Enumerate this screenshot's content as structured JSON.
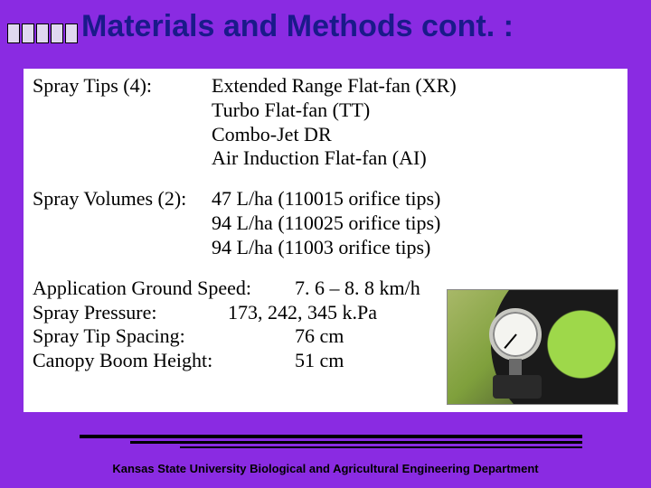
{
  "title": "Materials and Methods cont. :",
  "sections": {
    "sprayTips": {
      "label": "Spray Tips (4):",
      "lines": [
        "Extended Range Flat-fan (XR)",
        "Turbo Flat-fan (TT)",
        "Combo-Jet DR",
        "Air Induction Flat-fan (AI)"
      ]
    },
    "sprayVolumes": {
      "label": "Spray Volumes (2):",
      "lines": [
        "47 L/ha (110015 orifice tips)",
        "94 L/ha  (110025 orifice tips)",
        "94 L/ha (11003 orifice tips)"
      ]
    },
    "params": {
      "groundSpeed": {
        "label": "Application Ground Speed:",
        "value": "7. 6 – 8. 8 km/h"
      },
      "pressure": {
        "label": "Spray Pressure:",
        "value": "173, 242, 345 k.Pa"
      },
      "tipSpacing": {
        "label": "Spray Tip Spacing:",
        "value": "76 cm"
      },
      "boomHeight": {
        "label": "Canopy Boom Height:",
        "value": "51 cm"
      }
    }
  },
  "footer": "Kansas State University Biological and Agricultural Engineering Department",
  "colors": {
    "background": "#8a2be2",
    "titleColor": "#1a1a8a",
    "contentBg": "#ffffff",
    "textColor": "#000000"
  }
}
